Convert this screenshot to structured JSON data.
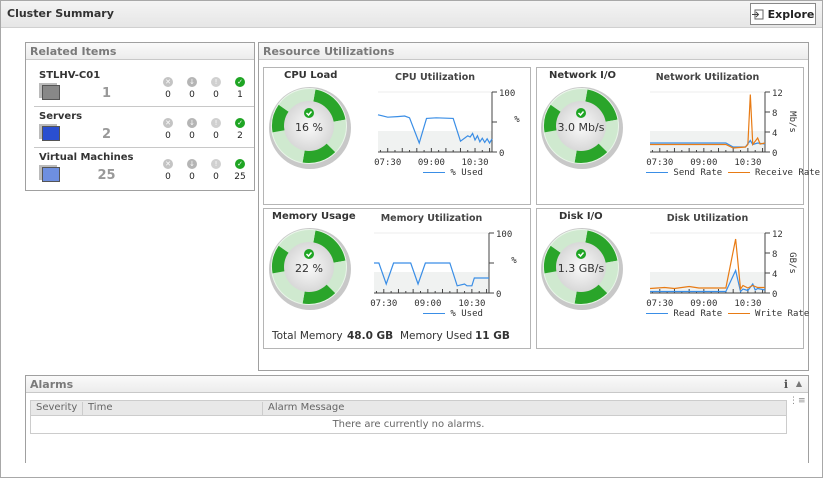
{
  "header": {
    "title": "Cluster Summary",
    "explore_label": "Explore"
  },
  "related": {
    "title": "Related Items",
    "items": [
      {
        "name": "STLHV-C01",
        "count": "1",
        "icon": "cluster-icon",
        "critical": "0",
        "major": "0",
        "warning": "0",
        "normal": "1"
      },
      {
        "name": "Servers",
        "count": "2",
        "icon": "server-icon",
        "critical": "0",
        "major": "0",
        "warning": "0",
        "normal": "2"
      },
      {
        "name": "Virtual Machines",
        "count": "25",
        "icon": "virtual-machine-icon",
        "critical": "0",
        "major": "0",
        "warning": "0",
        "normal": "25"
      }
    ]
  },
  "resources": {
    "title": "Resource Utilizations",
    "cpu": {
      "title": "CPU Load",
      "value": "16 %"
    },
    "network": {
      "title": "Network I/O",
      "value": "3.0 Mb/s"
    },
    "memory": {
      "title": "Memory Usage",
      "value": "22 %",
      "total_label": "Total Memory",
      "total_value": "48.0 GB",
      "used_label": "Memory Used",
      "used_value": "11 GB"
    },
    "disk": {
      "title": "Disk I/O",
      "value": "1.3 GB/s"
    }
  },
  "colors": {
    "blue": "#3a8ee6",
    "orange": "#e87b14",
    "gauge_green": "#2aa52a"
  },
  "chart_data": [
    {
      "id": "cpu",
      "type": "line",
      "title": "CPU Utilization",
      "ylabel": "%",
      "ylim": [
        0,
        100
      ],
      "yticks": [
        "0",
        "",
        "100"
      ],
      "xlim": [
        "07:10",
        "11:05"
      ],
      "xticks": [
        "07:30",
        "09:00",
        "10:30"
      ],
      "legend": "bottom",
      "series": [
        {
          "name": "% Used",
          "color": "#3a8ee6",
          "points": [
            [
              "07:10",
              62
            ],
            [
              "07:30",
              58
            ],
            [
              "07:50",
              59
            ],
            [
              "08:05",
              60
            ],
            [
              "08:15",
              57
            ],
            [
              "08:35",
              15
            ],
            [
              "08:50",
              56
            ],
            [
              "09:10",
              57
            ],
            [
              "09:45",
              56
            ],
            [
              "10:00",
              18
            ],
            [
              "10:10",
              24
            ],
            [
              "10:15",
              27
            ],
            [
              "10:20",
              25
            ],
            [
              "10:25",
              31
            ],
            [
              "10:30",
              20
            ],
            [
              "10:35",
              27
            ],
            [
              "10:40",
              17
            ],
            [
              "10:45",
              23
            ],
            [
              "10:50",
              16
            ],
            [
              "10:55",
              22
            ],
            [
              "11:00",
              15
            ],
            [
              "11:05",
              22
            ]
          ]
        }
      ]
    },
    {
      "id": "network",
      "type": "line",
      "title": "Network Utilization",
      "ylabel": "Mb/s",
      "ylim": [
        0,
        12
      ],
      "yticks": [
        "0",
        "4",
        "8",
        "12"
      ],
      "xlim": [
        "07:10",
        "11:05"
      ],
      "xticks": [
        "07:30",
        "09:00",
        "10:30"
      ],
      "legend": "bottom",
      "series": [
        {
          "name": "Send Rate",
          "color": "#3a8ee6",
          "points": [
            [
              "07:10",
              1.8
            ],
            [
              "09:45",
              1.8
            ],
            [
              "10:00",
              1.0
            ],
            [
              "10:25",
              1.0
            ],
            [
              "10:35",
              2.3
            ],
            [
              "10:40",
              1.5
            ],
            [
              "10:50",
              1.8
            ],
            [
              "11:05",
              1.6
            ]
          ]
        },
        {
          "name": "Receive Rate",
          "color": "#e87b14",
          "points": [
            [
              "07:10",
              1.5
            ],
            [
              "09:45",
              1.5
            ],
            [
              "10:00",
              0.8
            ],
            [
              "10:25",
              1.0
            ],
            [
              "10:30",
              1.5
            ],
            [
              "10:35",
              11.5
            ],
            [
              "10:40",
              1.5
            ],
            [
              "10:50",
              2.8
            ],
            [
              "10:55",
              1.6
            ],
            [
              "11:05",
              1.8
            ]
          ]
        }
      ]
    },
    {
      "id": "memory",
      "type": "line",
      "title": "Memory Utilization",
      "ylabel": "%",
      "ylim": [
        0,
        100
      ],
      "yticks": [
        "0",
        "",
        "100"
      ],
      "xlim": [
        "07:10",
        "11:05"
      ],
      "xticks": [
        "07:30",
        "09:00",
        "10:30"
      ],
      "legend": "bottom",
      "series": [
        {
          "name": "% Used",
          "color": "#3a8ee6",
          "points": [
            [
              "07:10",
              50
            ],
            [
              "07:20",
              50
            ],
            [
              "07:35",
              15
            ],
            [
              "07:50",
              50
            ],
            [
              "08:25",
              50
            ],
            [
              "08:40",
              15
            ],
            [
              "08:55",
              50
            ],
            [
              "09:45",
              50
            ],
            [
              "10:00",
              12
            ],
            [
              "10:15",
              15
            ],
            [
              "10:20",
              12
            ],
            [
              "10:30",
              12
            ],
            [
              "10:35",
              25
            ],
            [
              "11:05",
              25
            ]
          ]
        }
      ]
    },
    {
      "id": "disk",
      "type": "line",
      "title": "Disk Utilization",
      "ylabel": "GB/s",
      "ylim": [
        0,
        12
      ],
      "yticks": [
        "0",
        "4",
        "8",
        "12"
      ],
      "xlim": [
        "07:10",
        "11:05"
      ],
      "xticks": [
        "07:30",
        "09:00",
        "10:30"
      ],
      "legend": "bottom",
      "series": [
        {
          "name": "Read Rate",
          "color": "#3a8ee6",
          "points": [
            [
              "07:10",
              0.3
            ],
            [
              "09:45",
              0.3
            ],
            [
              "10:05",
              4.5
            ],
            [
              "10:15",
              0.3
            ],
            [
              "10:20",
              0.8
            ],
            [
              "10:30",
              0.5
            ],
            [
              "10:40",
              1.8
            ],
            [
              "10:45",
              0.6
            ],
            [
              "10:50",
              0.9
            ],
            [
              "11:05",
              0.6
            ]
          ]
        },
        {
          "name": "Write Rate",
          "color": "#e87b14",
          "points": [
            [
              "07:10",
              0.9
            ],
            [
              "07:40",
              1.1
            ],
            [
              "08:00",
              0.9
            ],
            [
              "08:30",
              1.3
            ],
            [
              "08:50",
              1.0
            ],
            [
              "09:45",
              1.0
            ],
            [
              "10:05",
              10.8
            ],
            [
              "10:15",
              0.8
            ],
            [
              "10:20",
              1.5
            ],
            [
              "10:30",
              1.0
            ],
            [
              "10:40",
              1.5
            ],
            [
              "10:50",
              1.1
            ],
            [
              "11:05",
              1.1
            ]
          ]
        }
      ]
    }
  ],
  "alarms": {
    "title": "Alarms",
    "columns": [
      "Severity",
      "Time",
      "Alarm Message"
    ],
    "empty_message": "There are currently no alarms."
  }
}
